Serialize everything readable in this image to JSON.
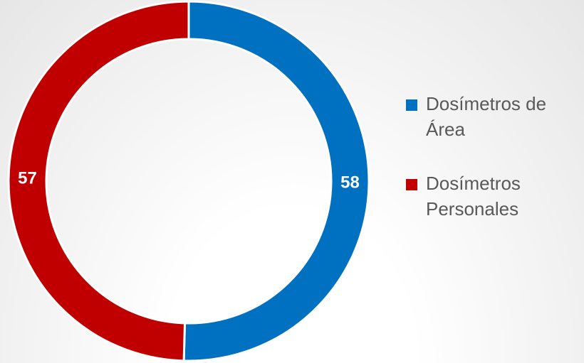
{
  "chart_data": {
    "type": "donut",
    "categories": [
      "Dosímetros de Área",
      "Dosímetros Personales"
    ],
    "values": [
      58,
      57
    ],
    "colors": [
      "#0070c0",
      "#c00000"
    ],
    "legend": "right"
  }
}
